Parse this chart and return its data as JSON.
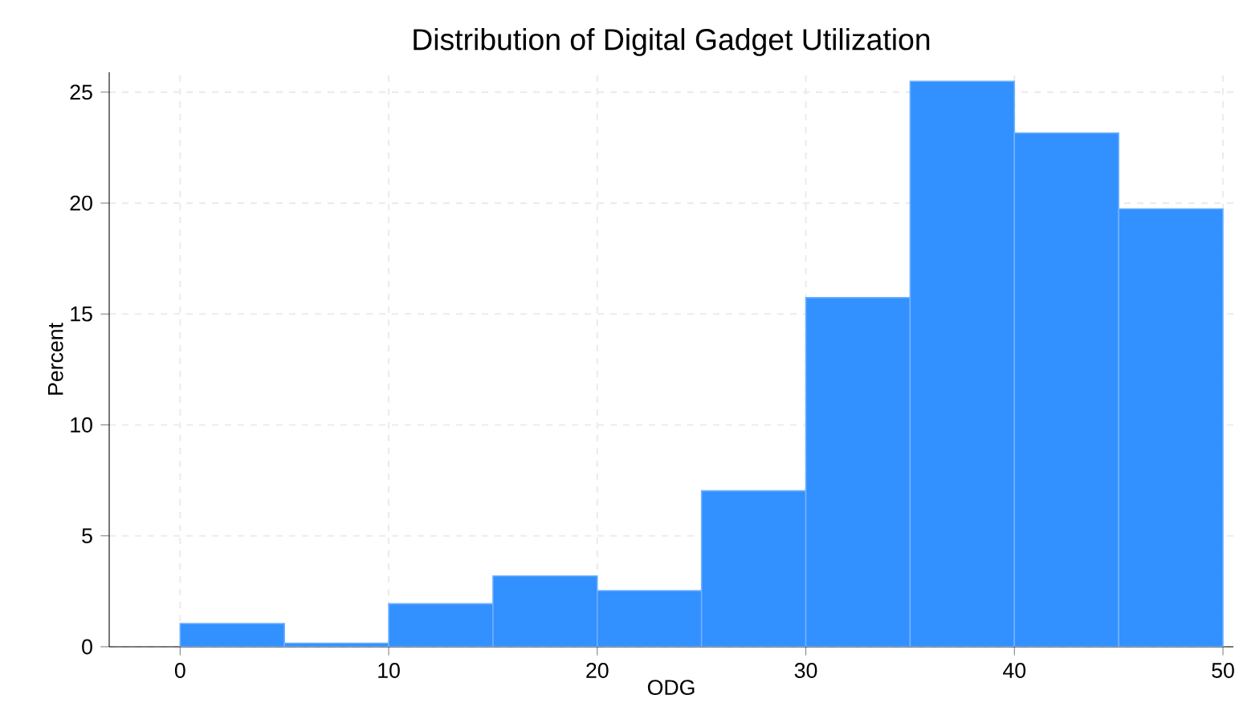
{
  "chart_data": {
    "type": "histogram",
    "title": "Distribution of Digital Gadget Utilization",
    "xlabel": "ODG",
    "ylabel": "Percent",
    "bins": [
      0,
      5,
      10,
      15,
      20,
      25,
      30,
      35,
      40,
      45,
      50
    ],
    "values": [
      1.05,
      0.16,
      1.94,
      3.19,
      2.53,
      7.03,
      15.74,
      25.49,
      23.16,
      19.74
    ],
    "color": "#3290ff",
    "xlim": [
      -3.4,
      50.5
    ],
    "ylim": [
      0,
      25.9
    ],
    "xticks": [
      0,
      10,
      20,
      30,
      40,
      50
    ],
    "yticks": [
      0,
      5,
      10,
      15,
      20,
      25
    ],
    "grid": true
  }
}
